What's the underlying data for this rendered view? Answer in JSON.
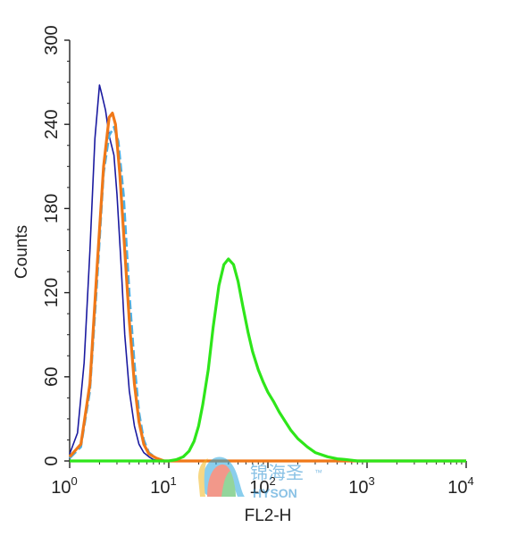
{
  "chart_data": {
    "type": "line",
    "title": "",
    "xlabel": "FL2-H",
    "ylabel": "Counts",
    "xscale": "log",
    "xlim": [
      1,
      10000
    ],
    "ylim": [
      0,
      300
    ],
    "yticks": [
      {
        "value": 0,
        "label": "0"
      },
      {
        "value": 60,
        "label": "60"
      },
      {
        "value": 120,
        "label": "120"
      },
      {
        "value": 180,
        "label": "180"
      },
      {
        "value": 240,
        "label": "240"
      },
      {
        "value": 300,
        "label": "300"
      }
    ],
    "xticks": [
      {
        "value": 1,
        "base": "10",
        "exp": "0"
      },
      {
        "value": 10,
        "base": "10",
        "exp": "1"
      },
      {
        "value": 100,
        "base": "10",
        "exp": "2"
      },
      {
        "value": 1000,
        "base": "10",
        "exp": "3"
      },
      {
        "value": 10000,
        "base": "10",
        "exp": "4"
      }
    ],
    "grid": false,
    "legend": "none",
    "series": [
      {
        "color": "#1a1aa0",
        "x": [
          1.0,
          1.2,
          1.4,
          1.6,
          1.8,
          2.0,
          2.1,
          2.3,
          2.5,
          2.8,
          3.0,
          3.3,
          3.6,
          4.0,
          4.5,
          5.0,
          5.6,
          6.3,
          7.0,
          8.0,
          10.0,
          100.0,
          10000.0
        ],
        "values": [
          5,
          20,
          70,
          150,
          230,
          268,
          262,
          250,
          232,
          218,
          190,
          140,
          90,
          50,
          25,
          12,
          6,
          3,
          1,
          0,
          0,
          0,
          0
        ]
      },
      {
        "color": "#4ab0e6",
        "x": [
          1.0,
          1.3,
          1.6,
          1.9,
          2.2,
          2.5,
          2.8,
          3.1,
          3.5,
          4.0,
          4.5,
          5.0,
          5.6,
          6.3,
          7.5,
          9.0,
          10.0,
          100.0,
          10000.0
        ],
        "values": [
          2,
          10,
          50,
          130,
          205,
          232,
          238,
          228,
          190,
          120,
          70,
          35,
          15,
          6,
          2,
          0,
          0,
          0,
          0
        ]
      },
      {
        "color": "#f07818",
        "x": [
          1.0,
          1.3,
          1.6,
          1.9,
          2.2,
          2.5,
          2.7,
          2.9,
          3.2,
          3.6,
          4.0,
          4.5,
          5.0,
          5.6,
          6.3,
          7.5,
          9.0,
          10.0,
          100.0,
          10000.0
        ],
        "values": [
          3,
          12,
          55,
          140,
          210,
          245,
          248,
          240,
          205,
          150,
          100,
          55,
          28,
          12,
          5,
          2,
          0,
          0,
          0,
          0
        ]
      },
      {
        "color": "#2ee61a",
        "x": [
          1.0,
          10.0,
          12.0,
          14.0,
          16.0,
          18.0,
          20.0,
          22.0,
          25.0,
          28.0,
          32.0,
          36.0,
          40.0,
          45.0,
          50.0,
          56.0,
          63.0,
          70.0,
          80.0,
          90.0,
          100.0,
          115.0,
          130.0,
          150.0,
          170.0,
          200.0,
          250.0,
          300.0,
          400.0,
          500.0,
          600.0,
          700.0,
          800.0,
          1000.0,
          10000.0
        ],
        "values": [
          0,
          0,
          1,
          3,
          7,
          14,
          25,
          40,
          65,
          95,
          125,
          140,
          144,
          140,
          128,
          110,
          92,
          78,
          65,
          56,
          49,
          42,
          35,
          28,
          22,
          16,
          10,
          6,
          3,
          1.5,
          1,
          0.5,
          0,
          0,
          0
        ]
      }
    ]
  },
  "watermark": {
    "cn_text": "锦海圣",
    "en_text": "HYSON",
    "tm": "™"
  }
}
